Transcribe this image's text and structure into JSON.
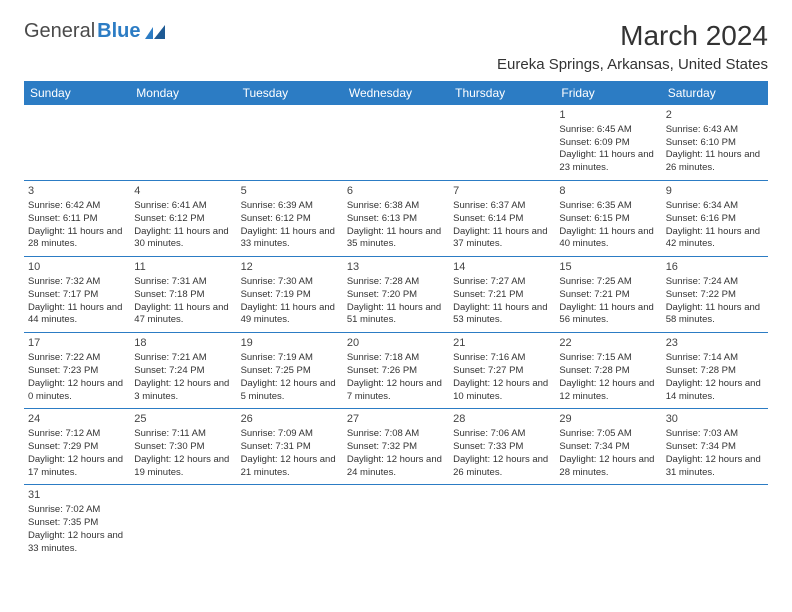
{
  "brand": {
    "part1": "General",
    "part2": "Blue"
  },
  "title": "March 2024",
  "location": "Eureka Springs, Arkansas, United States",
  "colors": {
    "header_bg": "#2c7cc4",
    "border": "#2c7cc4",
    "text": "#333333"
  },
  "daynames": [
    "Sunday",
    "Monday",
    "Tuesday",
    "Wednesday",
    "Thursday",
    "Friday",
    "Saturday"
  ],
  "weeks": [
    [
      null,
      null,
      null,
      null,
      null,
      {
        "n": "1",
        "sr": "Sunrise: 6:45 AM",
        "ss": "Sunset: 6:09 PM",
        "dl": "Daylight: 11 hours and 23 minutes."
      },
      {
        "n": "2",
        "sr": "Sunrise: 6:43 AM",
        "ss": "Sunset: 6:10 PM",
        "dl": "Daylight: 11 hours and 26 minutes."
      }
    ],
    [
      {
        "n": "3",
        "sr": "Sunrise: 6:42 AM",
        "ss": "Sunset: 6:11 PM",
        "dl": "Daylight: 11 hours and 28 minutes."
      },
      {
        "n": "4",
        "sr": "Sunrise: 6:41 AM",
        "ss": "Sunset: 6:12 PM",
        "dl": "Daylight: 11 hours and 30 minutes."
      },
      {
        "n": "5",
        "sr": "Sunrise: 6:39 AM",
        "ss": "Sunset: 6:12 PM",
        "dl": "Daylight: 11 hours and 33 minutes."
      },
      {
        "n": "6",
        "sr": "Sunrise: 6:38 AM",
        "ss": "Sunset: 6:13 PM",
        "dl": "Daylight: 11 hours and 35 minutes."
      },
      {
        "n": "7",
        "sr": "Sunrise: 6:37 AM",
        "ss": "Sunset: 6:14 PM",
        "dl": "Daylight: 11 hours and 37 minutes."
      },
      {
        "n": "8",
        "sr": "Sunrise: 6:35 AM",
        "ss": "Sunset: 6:15 PM",
        "dl": "Daylight: 11 hours and 40 minutes."
      },
      {
        "n": "9",
        "sr": "Sunrise: 6:34 AM",
        "ss": "Sunset: 6:16 PM",
        "dl": "Daylight: 11 hours and 42 minutes."
      }
    ],
    [
      {
        "n": "10",
        "sr": "Sunrise: 7:32 AM",
        "ss": "Sunset: 7:17 PM",
        "dl": "Daylight: 11 hours and 44 minutes."
      },
      {
        "n": "11",
        "sr": "Sunrise: 7:31 AM",
        "ss": "Sunset: 7:18 PM",
        "dl": "Daylight: 11 hours and 47 minutes."
      },
      {
        "n": "12",
        "sr": "Sunrise: 7:30 AM",
        "ss": "Sunset: 7:19 PM",
        "dl": "Daylight: 11 hours and 49 minutes."
      },
      {
        "n": "13",
        "sr": "Sunrise: 7:28 AM",
        "ss": "Sunset: 7:20 PM",
        "dl": "Daylight: 11 hours and 51 minutes."
      },
      {
        "n": "14",
        "sr": "Sunrise: 7:27 AM",
        "ss": "Sunset: 7:21 PM",
        "dl": "Daylight: 11 hours and 53 minutes."
      },
      {
        "n": "15",
        "sr": "Sunrise: 7:25 AM",
        "ss": "Sunset: 7:21 PM",
        "dl": "Daylight: 11 hours and 56 minutes."
      },
      {
        "n": "16",
        "sr": "Sunrise: 7:24 AM",
        "ss": "Sunset: 7:22 PM",
        "dl": "Daylight: 11 hours and 58 minutes."
      }
    ],
    [
      {
        "n": "17",
        "sr": "Sunrise: 7:22 AM",
        "ss": "Sunset: 7:23 PM",
        "dl": "Daylight: 12 hours and 0 minutes."
      },
      {
        "n": "18",
        "sr": "Sunrise: 7:21 AM",
        "ss": "Sunset: 7:24 PM",
        "dl": "Daylight: 12 hours and 3 minutes."
      },
      {
        "n": "19",
        "sr": "Sunrise: 7:19 AM",
        "ss": "Sunset: 7:25 PM",
        "dl": "Daylight: 12 hours and 5 minutes."
      },
      {
        "n": "20",
        "sr": "Sunrise: 7:18 AM",
        "ss": "Sunset: 7:26 PM",
        "dl": "Daylight: 12 hours and 7 minutes."
      },
      {
        "n": "21",
        "sr": "Sunrise: 7:16 AM",
        "ss": "Sunset: 7:27 PM",
        "dl": "Daylight: 12 hours and 10 minutes."
      },
      {
        "n": "22",
        "sr": "Sunrise: 7:15 AM",
        "ss": "Sunset: 7:28 PM",
        "dl": "Daylight: 12 hours and 12 minutes."
      },
      {
        "n": "23",
        "sr": "Sunrise: 7:14 AM",
        "ss": "Sunset: 7:28 PM",
        "dl": "Daylight: 12 hours and 14 minutes."
      }
    ],
    [
      {
        "n": "24",
        "sr": "Sunrise: 7:12 AM",
        "ss": "Sunset: 7:29 PM",
        "dl": "Daylight: 12 hours and 17 minutes."
      },
      {
        "n": "25",
        "sr": "Sunrise: 7:11 AM",
        "ss": "Sunset: 7:30 PM",
        "dl": "Daylight: 12 hours and 19 minutes."
      },
      {
        "n": "26",
        "sr": "Sunrise: 7:09 AM",
        "ss": "Sunset: 7:31 PM",
        "dl": "Daylight: 12 hours and 21 minutes."
      },
      {
        "n": "27",
        "sr": "Sunrise: 7:08 AM",
        "ss": "Sunset: 7:32 PM",
        "dl": "Daylight: 12 hours and 24 minutes."
      },
      {
        "n": "28",
        "sr": "Sunrise: 7:06 AM",
        "ss": "Sunset: 7:33 PM",
        "dl": "Daylight: 12 hours and 26 minutes."
      },
      {
        "n": "29",
        "sr": "Sunrise: 7:05 AM",
        "ss": "Sunset: 7:34 PM",
        "dl": "Daylight: 12 hours and 28 minutes."
      },
      {
        "n": "30",
        "sr": "Sunrise: 7:03 AM",
        "ss": "Sunset: 7:34 PM",
        "dl": "Daylight: 12 hours and 31 minutes."
      }
    ],
    [
      {
        "n": "31",
        "sr": "Sunrise: 7:02 AM",
        "ss": "Sunset: 7:35 PM",
        "dl": "Daylight: 12 hours and 33 minutes."
      },
      null,
      null,
      null,
      null,
      null,
      null
    ]
  ]
}
